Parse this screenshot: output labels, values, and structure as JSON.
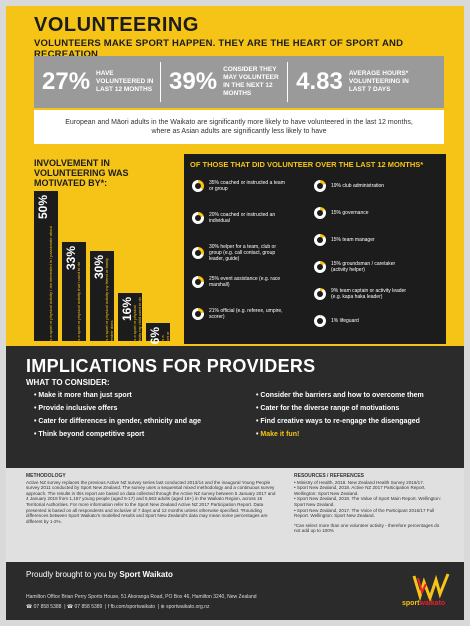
{
  "header": {
    "title": "VOLUNTEERING",
    "subtitle": "VOLUNTEERS MAKE SPORT HAPPEN. THEY ARE THE HEART OF SPORT AND RECREATION"
  },
  "stats": [
    {
      "value": "27%",
      "label": "HAVE VOLUNTEERED IN LAST 12 MONTHS"
    },
    {
      "value": "39%",
      "label": "CONSIDER THEY MAY VOLUNTEER IN THE NEXT 12 MONTHS"
    },
    {
      "value": "4.83",
      "label": "AVERAGE HOURS* VOLUNTEERING IN LAST 7 DAYS"
    }
  ],
  "note": "European and Māori adults in the Waikato are significantly more likely to have volunteered in the last 12 months, where as Asian adults are significantly less likely to have",
  "motivation": {
    "title": "INVOLVEMENT IN VOLUNTEERING WAS MOTIVATED BY*:",
    "bars": [
      {
        "value": "50%",
        "text": "It is a sport or physical activity I am interested in / passionate about"
      },
      {
        "value": "33%",
        "text": "It is a sport or physical activity that I used to do"
      },
      {
        "value": "30%",
        "text": "It is a sport or physical activity my friend or family member does"
      },
      {
        "value": "16%",
        "text": "It is a sport or physical activity my child used to do"
      },
      {
        "value": "6%",
        "text": "It is a sport or physical activity that is run by the training or study programme I am on"
      }
    ],
    "bar_levels": [
      50,
      33,
      30,
      16,
      6
    ]
  },
  "volunteer_roles": {
    "title": "OF THOSE THAT DID VOLUNTEER OVER THE LAST 12 MONTHS*",
    "left": [
      {
        "pct": 35,
        "text": "35% coached or instructed a team or group"
      },
      {
        "pct": 20,
        "text": "20% coached or instructed an individual"
      },
      {
        "pct": 30,
        "text": "30% helper for a team, club or group (e.g. call contact, group leader, guide)"
      },
      {
        "pct": 25,
        "text": "25% event assistance (e.g. race marshall)"
      },
      {
        "pct": 21,
        "text": "21% official (e.g. referee, umpire, scorer)"
      }
    ],
    "right": [
      {
        "pct": 19,
        "text": "19% club administration"
      },
      {
        "pct": 15,
        "text": "15% governance"
      },
      {
        "pct": 15,
        "text": "15% team manager"
      },
      {
        "pct": 15,
        "text": "15% groundsman / caretaker (activity helper)"
      },
      {
        "pct": 9,
        "text": "9% team captain or activity leader (e.g. kapa haka leader)"
      },
      {
        "pct": 1,
        "text": "1% lifeguard"
      }
    ],
    "accent": "#f6c417"
  },
  "implications": {
    "title": "IMPLICATIONS FOR PROVIDERS",
    "subtitle": "WHAT TO CONSIDER:",
    "left": [
      "Make it more than just sport",
      "Provide inclusive offers",
      "Cater for differences in gender, ethnicity and age",
      "Think beyond competitive sport"
    ],
    "right": [
      "Consider the barriers and how to overcome them",
      "Cater for the diverse range of motivations",
      "Find creative ways to re-engage the disengaged",
      "Make it fun!"
    ]
  },
  "methodology": {
    "heading": "METHODOLOGY",
    "text": "Active NZ survey replaces the previous Active NZ survey series last conducted 2013/14 and the inaugural Young People survey 2011 conducted by Sport New Zealand. The survey uses a sequential mixed methodology and a continuous survey approach. The results in this report are based on data collected through the Active NZ survey between 5 January 2017 and 4 January 2018 from 1,157 young people (aged 5-17) and 5,563 adults (aged 18+) in the Waikato Region, across 16 Territorial Authorities. For more information refer to the Sport New Zealand Active NZ 2017 Participation Report. Data presented is based on all respondents and inclusive of 7 days and 12 months unless otherwise specified. *Rounding differences between Sport Waikato's modelled results and Sport New Zealand's data may mean some percentages are different by 1-2%.",
    "resources_heading": "RESOURCES / REFERENCES",
    "resources": [
      "• Ministry of Health, 2018. New Zealand Health Survey 2016/17.",
      "• Sport New Zealand, 2018. Active NZ 2017 Participation Report. Wellington: Sport New Zealand.",
      "• Sport New Zealand, 2018. The Value of Sport Main Report. Wellington: Sport New Zealand.",
      "• Sport New Zealand, 2017. The Voice of the Participant 2016/17 Full Report. Wellington: Sport New Zealand."
    ],
    "footnote": "*Can select more than one volunteer activity - therefore percentages do not add up to 100%"
  },
  "footer": {
    "brought": "Proudly brought to you by",
    "brand": "Sport Waikato",
    "office": "Hamilton Office Brian Perry Sports House, 51 Akoranga Road, PO Box 46, Hamilton 3240, New Zealand",
    "phone": "07 858 5388",
    "fax": "07 858 5389",
    "facebook": "fb.com/sportwaikato",
    "web": "sportwaikato.org.nz",
    "logo_sport": "sport",
    "logo_waikato": "waikato"
  }
}
